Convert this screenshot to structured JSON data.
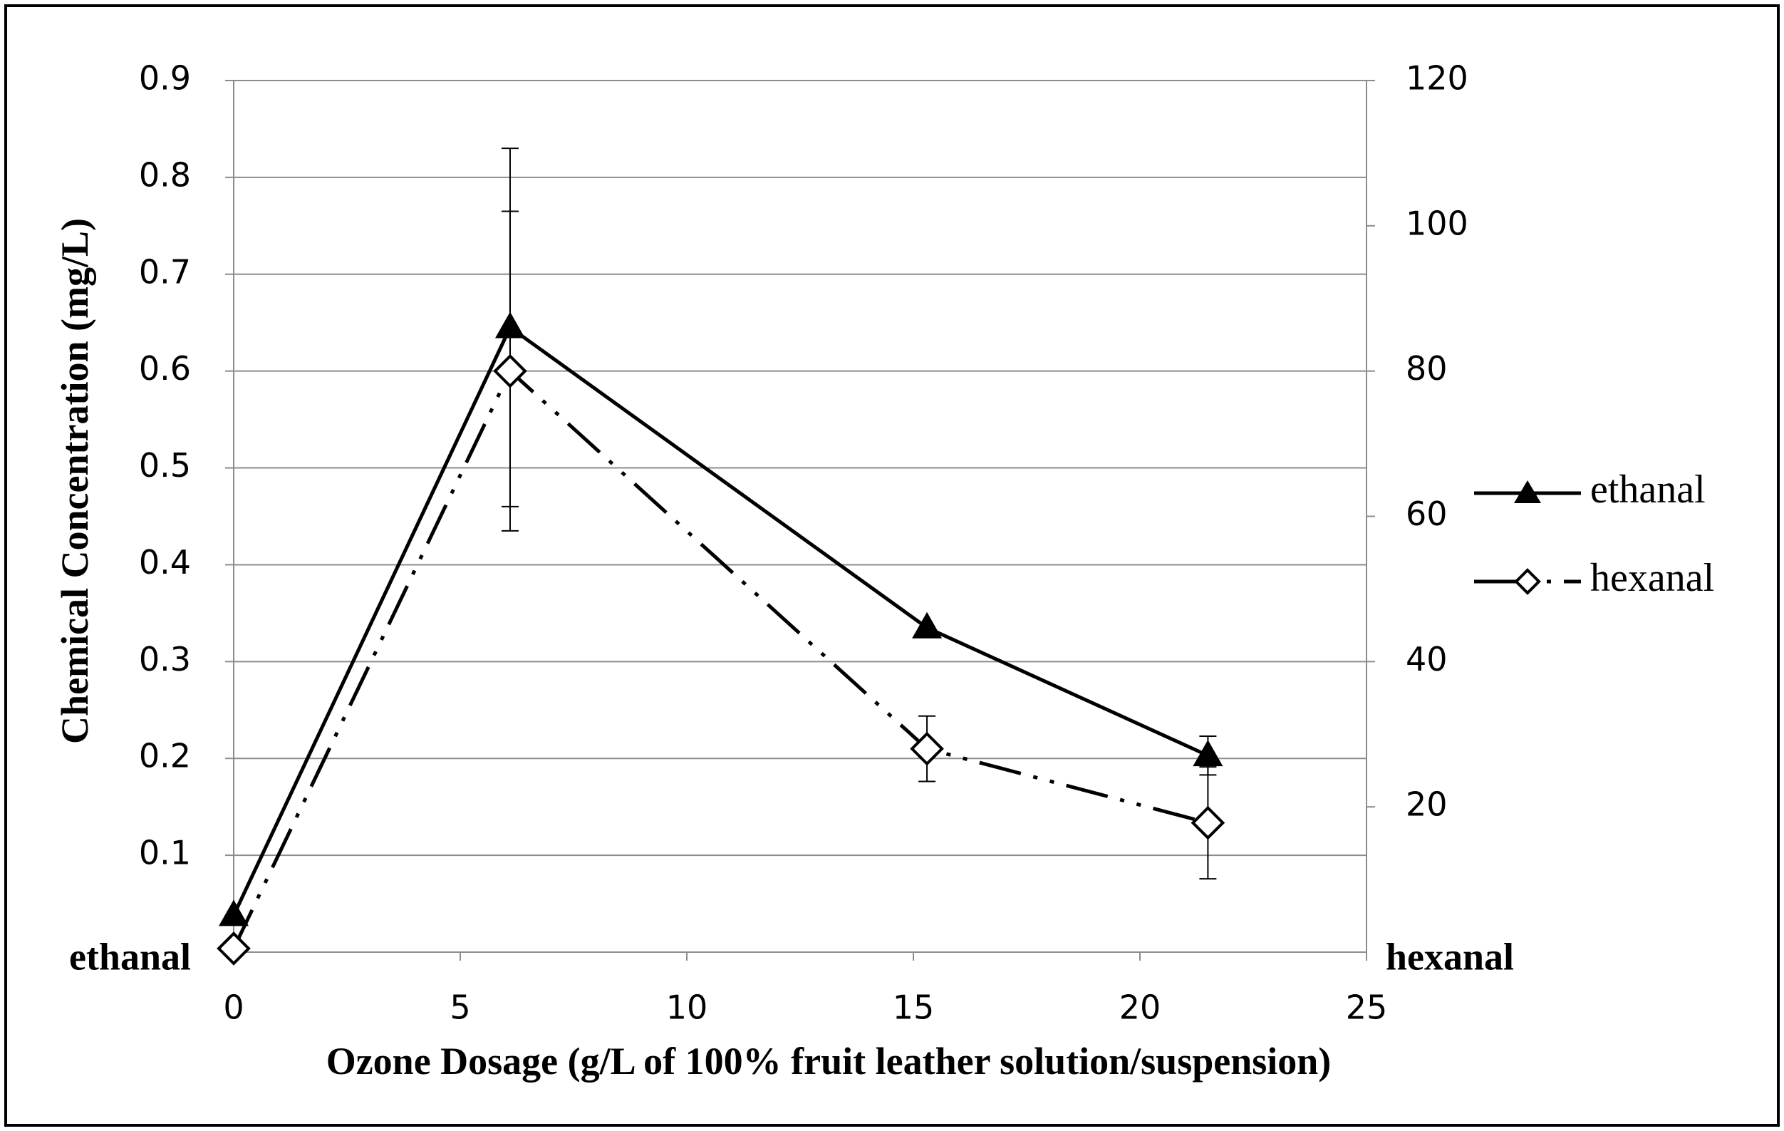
{
  "chart_data": {
    "type": "line",
    "xlabel": "Ozone Dosage  (g/L of 100% fruit leather solution/suspension)",
    "ylabel": "Chemical Concentration (mg/L)",
    "xlim": [
      0,
      25
    ],
    "x_ticks": [
      "0",
      "5",
      "10",
      "15",
      "20",
      "25"
    ],
    "y_left": {
      "range": [
        0,
        0.9
      ],
      "ticks": [
        "0.1",
        "0.2",
        "0.3",
        "0.4",
        "0.5",
        "0.6",
        "0.7",
        "0.8",
        "0.9"
      ],
      "zero_label": "ethanal"
    },
    "y_right": {
      "range": [
        0,
        120
      ],
      "ticks": [
        "20",
        "40",
        "60",
        "80",
        "100",
        "120"
      ],
      "zero_label": "hexanal"
    },
    "grid": true,
    "legend_position": "right",
    "series": [
      {
        "name": "ethanal",
        "axis": "left",
        "color": "#000000",
        "marker": "triangle-filled",
        "line": "solid",
        "x": [
          0,
          6.1,
          15.3,
          21.5
        ],
        "y": [
          0.038,
          0.645,
          0.335,
          0.203
        ],
        "error": [
          null,
          0.185,
          null,
          0.02
        ]
      },
      {
        "name": "hexanal",
        "axis": "right",
        "color": "#000000",
        "marker": "diamond-open",
        "line": "dash-dot-dot",
        "x": [
          0,
          6.1,
          15.3,
          21.5
        ],
        "y": [
          0.5,
          80,
          28,
          17.8
        ],
        "error": [
          null,
          22,
          4.5,
          7.7
        ]
      }
    ]
  }
}
